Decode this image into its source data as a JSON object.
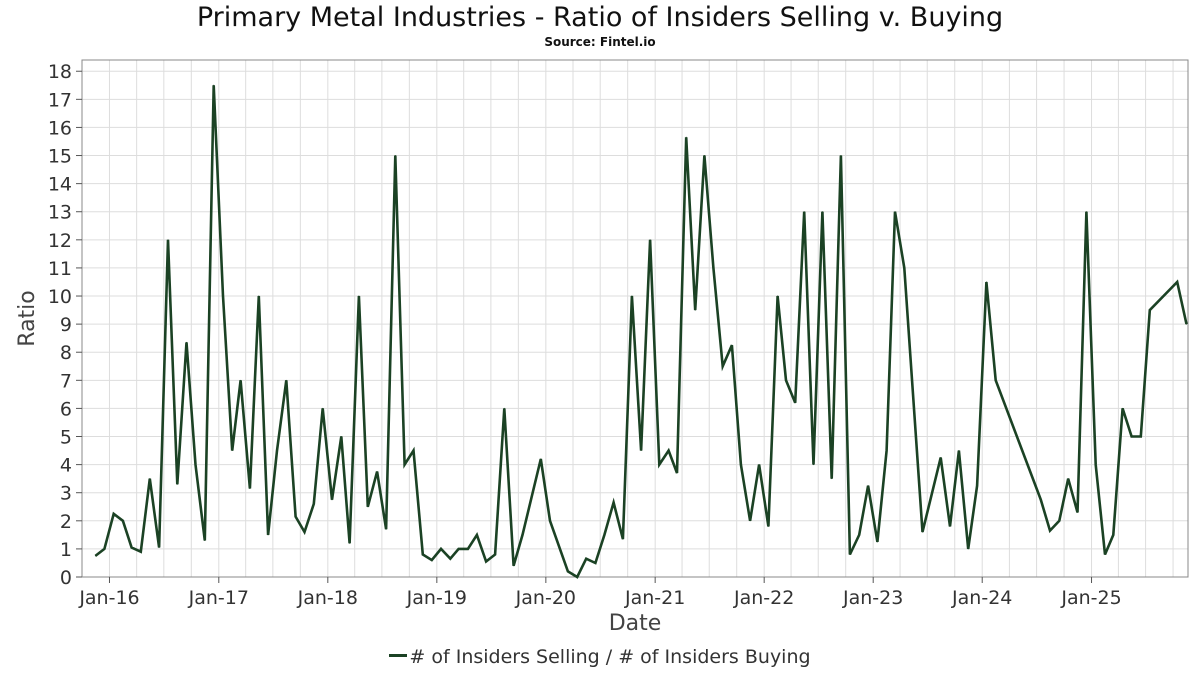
{
  "title": "Primary Metal Industries - Ratio of Insiders Selling v. Buying",
  "subtitle": "Source: Fintel.io",
  "colors": {
    "line": "#1b4224",
    "grid": "#dddddd",
    "frame": "#888888"
  },
  "chart_data": {
    "type": "line",
    "xlabel": "Date",
    "ylabel": "Ratio",
    "xlim": [
      "2015-10-01",
      "2025-11-20"
    ],
    "ylim": [
      0,
      18.4
    ],
    "y_ticks": [
      0,
      1,
      2,
      3,
      4,
      5,
      6,
      7,
      8,
      9,
      10,
      11,
      12,
      13,
      14,
      15,
      16,
      17,
      18
    ],
    "x_ticks": [
      {
        "label": "Jan-16",
        "date": "2016-01-01"
      },
      {
        "label": "Jan-17",
        "date": "2017-01-01"
      },
      {
        "label": "Jan-18",
        "date": "2018-01-01"
      },
      {
        "label": "Jan-19",
        "date": "2019-01-01"
      },
      {
        "label": "Jan-20",
        "date": "2020-01-01"
      },
      {
        "label": "Jan-21",
        "date": "2021-01-01"
      },
      {
        "label": "Jan-22",
        "date": "2022-01-01"
      },
      {
        "label": "Jan-23",
        "date": "2023-01-01"
      },
      {
        "label": "Jan-24",
        "date": "2024-01-01"
      },
      {
        "label": "Jan-25",
        "date": "2025-01-01"
      }
    ],
    "grid": true,
    "legend_position": "bottom-center",
    "series": [
      {
        "name": "# of Insiders Selling / # of Insiders Buying",
        "points": [
          [
            "2015-11-15",
            0.75
          ],
          [
            "2015-12-15",
            1.0
          ],
          [
            "2016-01-15",
            2.25
          ],
          [
            "2016-02-15",
            2.0
          ],
          [
            "2016-03-15",
            1.05
          ],
          [
            "2016-04-15",
            0.9
          ],
          [
            "2016-05-15",
            3.5
          ],
          [
            "2016-06-15",
            1.05
          ],
          [
            "2016-07-15",
            12.0
          ],
          [
            "2016-08-15",
            3.3
          ],
          [
            "2016-09-15",
            8.35
          ],
          [
            "2016-10-15",
            4.0
          ],
          [
            "2016-11-15",
            1.3
          ],
          [
            "2016-12-15",
            17.5
          ],
          [
            "2017-01-15",
            10.0
          ],
          [
            "2017-02-15",
            4.5
          ],
          [
            "2017-03-15",
            7.0
          ],
          [
            "2017-04-15",
            3.15
          ],
          [
            "2017-05-15",
            10.0
          ],
          [
            "2017-06-15",
            1.5
          ],
          [
            "2017-07-15",
            4.5
          ],
          [
            "2017-08-15",
            7.0
          ],
          [
            "2017-09-15",
            2.15
          ],
          [
            "2017-10-15",
            1.6
          ],
          [
            "2017-11-15",
            2.6
          ],
          [
            "2017-12-15",
            6.0
          ],
          [
            "2018-01-15",
            2.75
          ],
          [
            "2018-02-15",
            5.0
          ],
          [
            "2018-03-15",
            1.2
          ],
          [
            "2018-04-15",
            10.0
          ],
          [
            "2018-05-15",
            2.5
          ],
          [
            "2018-06-15",
            3.75
          ],
          [
            "2018-07-15",
            1.7
          ],
          [
            "2018-08-15",
            15.0
          ],
          [
            "2018-09-15",
            4.0
          ],
          [
            "2018-10-15",
            4.5
          ],
          [
            "2018-11-15",
            0.8
          ],
          [
            "2018-12-15",
            0.6
          ],
          [
            "2019-01-15",
            1.0
          ],
          [
            "2019-02-15",
            0.65
          ],
          [
            "2019-03-15",
            1.0
          ],
          [
            "2019-04-15",
            1.0
          ],
          [
            "2019-05-15",
            1.5
          ],
          [
            "2019-06-15",
            0.55
          ],
          [
            "2019-07-15",
            0.8
          ],
          [
            "2019-08-15",
            6.0
          ],
          [
            "2019-09-15",
            0.4
          ],
          [
            "2019-10-15",
            1.5
          ],
          [
            "2019-12-15",
            4.2
          ],
          [
            "2020-01-15",
            2.0
          ],
          [
            "2020-03-15",
            0.2
          ],
          [
            "2020-04-15",
            0.0
          ],
          [
            "2020-05-15",
            0.65
          ],
          [
            "2020-06-15",
            0.5
          ],
          [
            "2020-07-15",
            1.5
          ],
          [
            "2020-08-15",
            2.65
          ],
          [
            "2020-09-15",
            1.35
          ],
          [
            "2020-10-15",
            10.0
          ],
          [
            "2020-11-15",
            4.5
          ],
          [
            "2020-12-15",
            12.0
          ],
          [
            "2021-01-15",
            4.0
          ],
          [
            "2021-02-15",
            4.5
          ],
          [
            "2021-03-15",
            3.7
          ],
          [
            "2021-04-15",
            15.65
          ],
          [
            "2021-05-15",
            9.5
          ],
          [
            "2021-06-15",
            15.0
          ],
          [
            "2021-07-15",
            11.0
          ],
          [
            "2021-08-15",
            7.5
          ],
          [
            "2021-09-15",
            8.25
          ],
          [
            "2021-10-15",
            4.0
          ],
          [
            "2021-11-15",
            2.0
          ],
          [
            "2021-12-15",
            4.0
          ],
          [
            "2022-01-15",
            1.8
          ],
          [
            "2022-02-15",
            10.0
          ],
          [
            "2022-03-15",
            7.0
          ],
          [
            "2022-04-15",
            6.2
          ],
          [
            "2022-05-15",
            13.0
          ],
          [
            "2022-06-15",
            4.0
          ],
          [
            "2022-07-15",
            13.0
          ],
          [
            "2022-08-15",
            3.5
          ],
          [
            "2022-09-15",
            15.0
          ],
          [
            "2022-10-15",
            0.8
          ],
          [
            "2022-11-15",
            1.5
          ],
          [
            "2022-12-15",
            3.25
          ],
          [
            "2023-01-15",
            1.25
          ],
          [
            "2023-02-15",
            4.5
          ],
          [
            "2023-03-15",
            13.0
          ],
          [
            "2023-04-15",
            11.0
          ],
          [
            "2023-06-15",
            1.6
          ],
          [
            "2023-08-15",
            4.25
          ],
          [
            "2023-09-15",
            1.8
          ],
          [
            "2023-10-15",
            4.5
          ],
          [
            "2023-11-15",
            1.0
          ],
          [
            "2023-12-15",
            3.25
          ],
          [
            "2024-01-15",
            10.5
          ],
          [
            "2024-02-15",
            7.0
          ],
          [
            "2024-07-15",
            2.75
          ],
          [
            "2024-08-15",
            1.65
          ],
          [
            "2024-09-15",
            2.0
          ],
          [
            "2024-10-15",
            3.5
          ],
          [
            "2024-11-15",
            2.3
          ],
          [
            "2024-12-15",
            13.0
          ],
          [
            "2025-01-15",
            4.0
          ],
          [
            "2025-02-15",
            0.8
          ],
          [
            "2025-03-15",
            1.5
          ],
          [
            "2025-04-15",
            6.0
          ],
          [
            "2025-05-15",
            5.0
          ],
          [
            "2025-06-15",
            5.0
          ],
          [
            "2025-07-15",
            9.5
          ],
          [
            "2025-10-15",
            10.5
          ],
          [
            "2025-11-15",
            9.0
          ]
        ]
      }
    ]
  }
}
